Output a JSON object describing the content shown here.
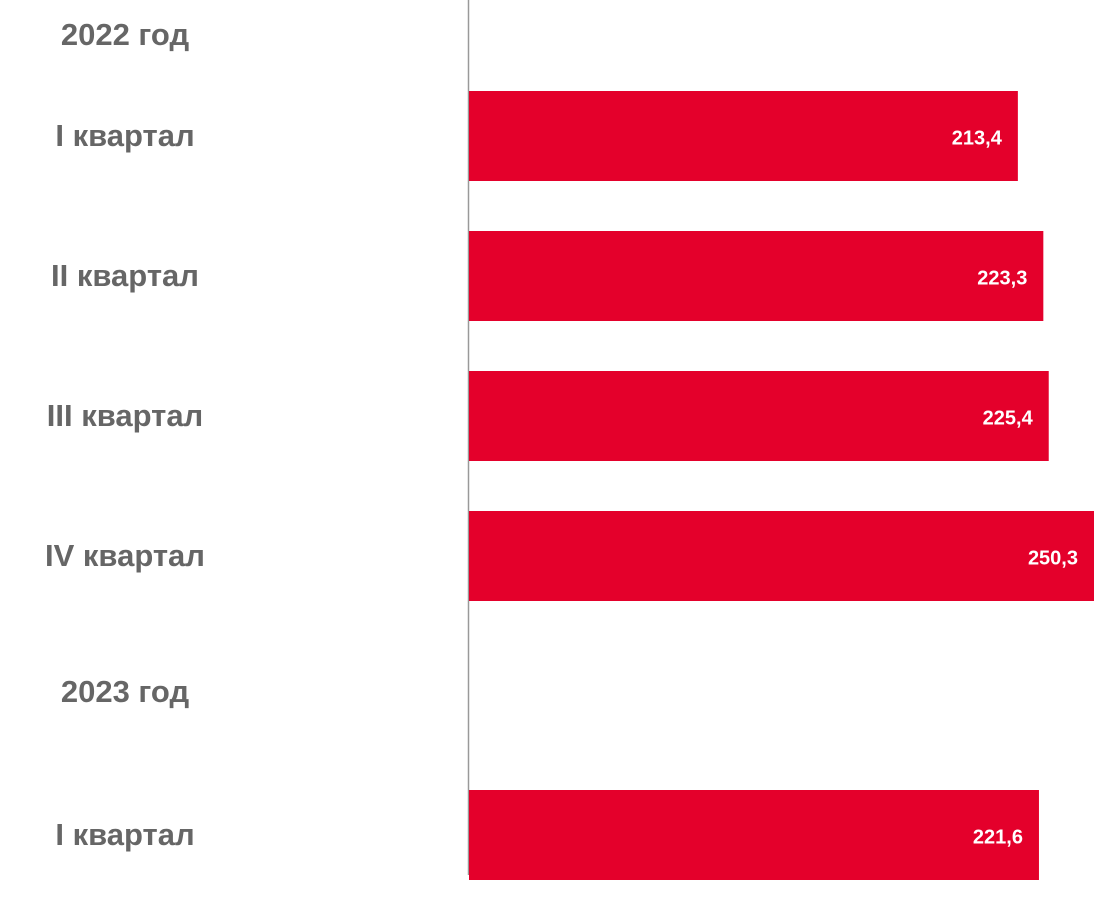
{
  "chart_data": {
    "type": "barh",
    "categories": [
      "2022 год",
      "I квартал",
      "II квартал",
      "III квартал",
      "IV квартал",
      "2023 год",
      "I квартал"
    ],
    "values": [
      null,
      213.4,
      223.3,
      225.4,
      250.3,
      null,
      221.6
    ],
    "value_labels": [
      null,
      "213,4",
      "223,3",
      "225,4",
      "250,3",
      null,
      "221,6"
    ],
    "color": "#e4002b",
    "xlim": [
      0,
      243
    ]
  }
}
